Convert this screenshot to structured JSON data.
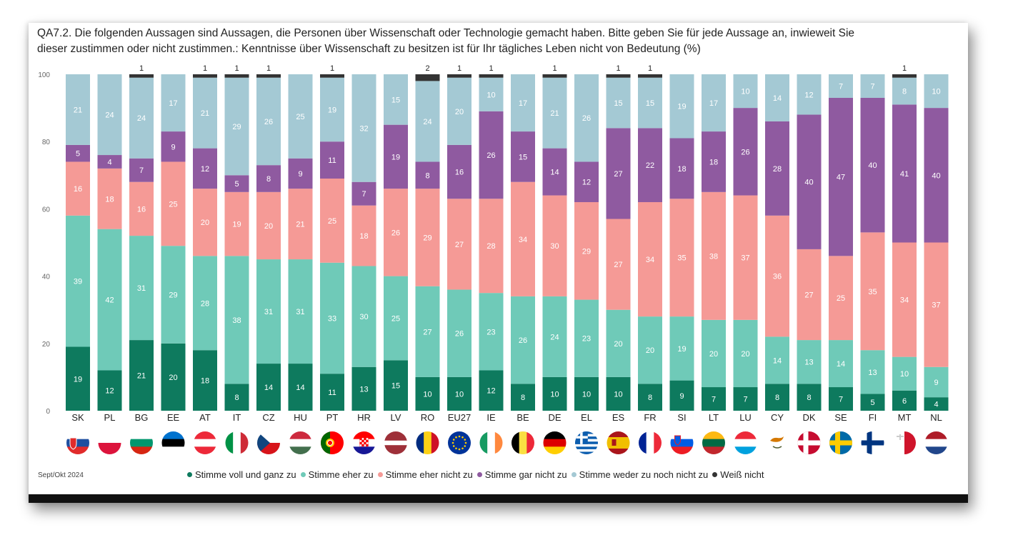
{
  "title_line1": "QA7.2. Die folgenden Aussagen sind Aussagen, die Personen über Wissenschaft oder Technologie gemacht haben. Bitte geben Sie für jede Aussage an, inwieweit Sie",
  "title_line2": "dieser zustimmen oder nicht zustimmen.: Kenntnisse über Wissenschaft zu besitzen ist für Ihr tägliches Leben nicht von Bedeutung (%)",
  "footnote": "Sept/Okt 2024",
  "colors": {
    "voll": "#0e7a5e",
    "eher": "#6fcab8",
    "eher_nicht": "#f59a96",
    "gar_nicht": "#8f5aa0",
    "weder": "#a4c9d4",
    "weiss_nicht": "#333333"
  },
  "legend": [
    {
      "key": "voll",
      "label": "Stimme voll und ganz zu"
    },
    {
      "key": "eher",
      "label": "Stimme eher zu"
    },
    {
      "key": "eher_nicht",
      "label": "Stimme eher nicht zu"
    },
    {
      "key": "gar_nicht",
      "label": "Stimme gar nicht zu"
    },
    {
      "key": "weder",
      "label": "Stimme weder zu noch nicht zu"
    },
    {
      "key": "weiss_nicht",
      "label": "Weiß nicht"
    }
  ],
  "chart_data": {
    "type": "bar",
    "stacked": true,
    "ylim": [
      0,
      100
    ],
    "yticks": [
      0,
      20,
      40,
      60,
      80,
      100
    ],
    "categories": [
      "SK",
      "PL",
      "BG",
      "EE",
      "AT",
      "IT",
      "CZ",
      "HU",
      "PT",
      "HR",
      "LV",
      "RO",
      "EU27",
      "IE",
      "BE",
      "DE",
      "EL",
      "ES",
      "FR",
      "SI",
      "LT",
      "LU",
      "CY",
      "DK",
      "SE",
      "FI",
      "MT",
      "NL"
    ],
    "series": [
      {
        "key": "voll",
        "name": "Stimme voll und ganz zu",
        "values": [
          19,
          12,
          21,
          20,
          18,
          8,
          14,
          14,
          11,
          13,
          15,
          10,
          10,
          12,
          8,
          10,
          10,
          10,
          8,
          9,
          7,
          7,
          8,
          8,
          7,
          5,
          6,
          4
        ]
      },
      {
        "key": "eher",
        "name": "Stimme eher zu",
        "values": [
          39,
          42,
          31,
          29,
          28,
          38,
          31,
          31,
          33,
          30,
          25,
          27,
          26,
          23,
          26,
          24,
          23,
          20,
          20,
          19,
          20,
          20,
          14,
          13,
          14,
          13,
          10,
          9
        ]
      },
      {
        "key": "eher_nicht",
        "name": "Stimme eher nicht zu",
        "values": [
          16,
          18,
          16,
          25,
          20,
          19,
          20,
          21,
          25,
          18,
          26,
          29,
          27,
          28,
          34,
          30,
          29,
          27,
          34,
          35,
          38,
          37,
          36,
          27,
          25,
          35,
          34,
          37
        ]
      },
      {
        "key": "gar_nicht",
        "name": "Stimme gar nicht zu",
        "values": [
          5,
          4,
          7,
          9,
          12,
          5,
          8,
          9,
          11,
          7,
          19,
          8,
          16,
          26,
          15,
          14,
          12,
          27,
          22,
          18,
          18,
          26,
          28,
          40,
          47,
          40,
          41,
          40
        ]
      },
      {
        "key": "weder",
        "name": "Stimme weder zu noch nicht zu",
        "values": [
          21,
          24,
          24,
          17,
          21,
          29,
          26,
          25,
          19,
          32,
          15,
          24,
          20,
          10,
          17,
          21,
          26,
          15,
          15,
          19,
          17,
          10,
          14,
          12,
          7,
          7,
          8,
          10
        ]
      },
      {
        "key": "weiss_nicht",
        "name": "Weiß nicht",
        "values": [
          0,
          0,
          1,
          0,
          1,
          1,
          1,
          0,
          1,
          0,
          0,
          2,
          1,
          1,
          0,
          1,
          0,
          1,
          1,
          0,
          0,
          0,
          0,
          0,
          0,
          0,
          1,
          0
        ]
      }
    ]
  }
}
